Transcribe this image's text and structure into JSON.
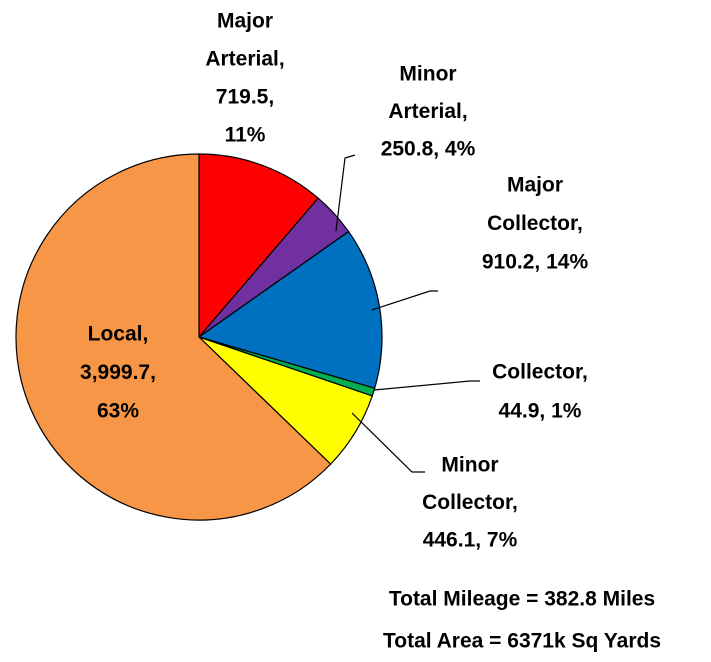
{
  "chart_data": {
    "type": "pie",
    "labels": [
      [
        "Major",
        "Arterial,",
        "719.5,",
        "11%"
      ],
      [
        "Minor",
        "Arterial,",
        "250.8, 4%"
      ],
      [
        "Major",
        "Collector,",
        "910.2, 14%"
      ],
      [
        "Collector,",
        "44.9, 1%"
      ],
      [
        "Minor",
        "Collector,",
        "446.1, 7%"
      ],
      [
        "Local,",
        "3,999.7,",
        "63%"
      ]
    ],
    "values": [
      719.5,
      250.8,
      910.2,
      44.9,
      446.1,
      3999.7
    ],
    "colors": [
      "#ff0000",
      "#7030a0",
      "#0070c0",
      "#00b050",
      "#ffff00",
      "#f79646"
    ],
    "annotations": [
      "Total Mileage = 382.8 Miles",
      "Total Area = 6371k Sq Yards"
    ]
  }
}
